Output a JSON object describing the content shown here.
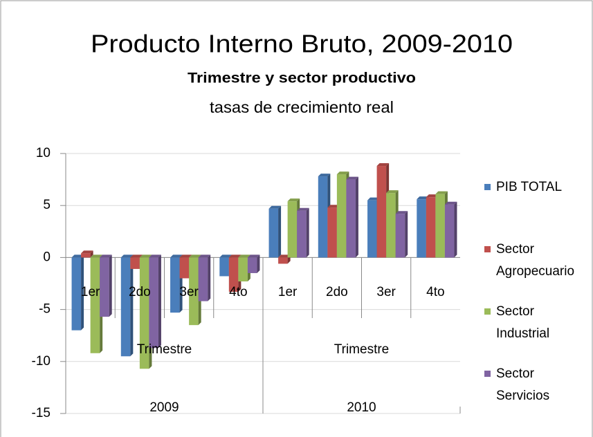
{
  "chart_data": {
    "type": "bar",
    "title": "Producto Interno Bruto, 2009-2010",
    "subtitle": "Trimestre y sector productivo",
    "note": "tasas de crecimiento real",
    "categories": [
      "1er",
      "2do",
      "3er",
      "4to",
      "1er",
      "2do",
      "3er",
      "4to"
    ],
    "category_groups": [
      {
        "label": "Trimestre",
        "year": "2009"
      },
      {
        "label": "Trimestre",
        "year": "2010"
      }
    ],
    "series": [
      {
        "name": "PIB TOTAL",
        "color": "#4a7ebb",
        "values": [
          -7.0,
          -9.5,
          -5.3,
          -1.8,
          4.7,
          7.8,
          5.5,
          5.6
        ]
      },
      {
        "name": "Sector Agropecuario",
        "color": "#c0504d",
        "values": [
          0.4,
          -1.1,
          -2.0,
          -3.3,
          -0.6,
          4.8,
          8.8,
          5.8
        ]
      },
      {
        "name": "Sector Industrial",
        "color": "#9bbb59",
        "values": [
          -9.2,
          -10.7,
          -6.5,
          -2.3,
          5.4,
          8.0,
          6.2,
          6.1
        ]
      },
      {
        "name": "Sector Servicios",
        "color": "#8064a2",
        "values": [
          -5.7,
          -8.7,
          -4.2,
          -1.5,
          4.5,
          7.5,
          4.2,
          5.1
        ]
      }
    ],
    "ylim": [
      -15,
      10
    ],
    "yticks": [
      -15,
      -10,
      -5,
      0,
      5,
      10
    ],
    "grid": true
  }
}
